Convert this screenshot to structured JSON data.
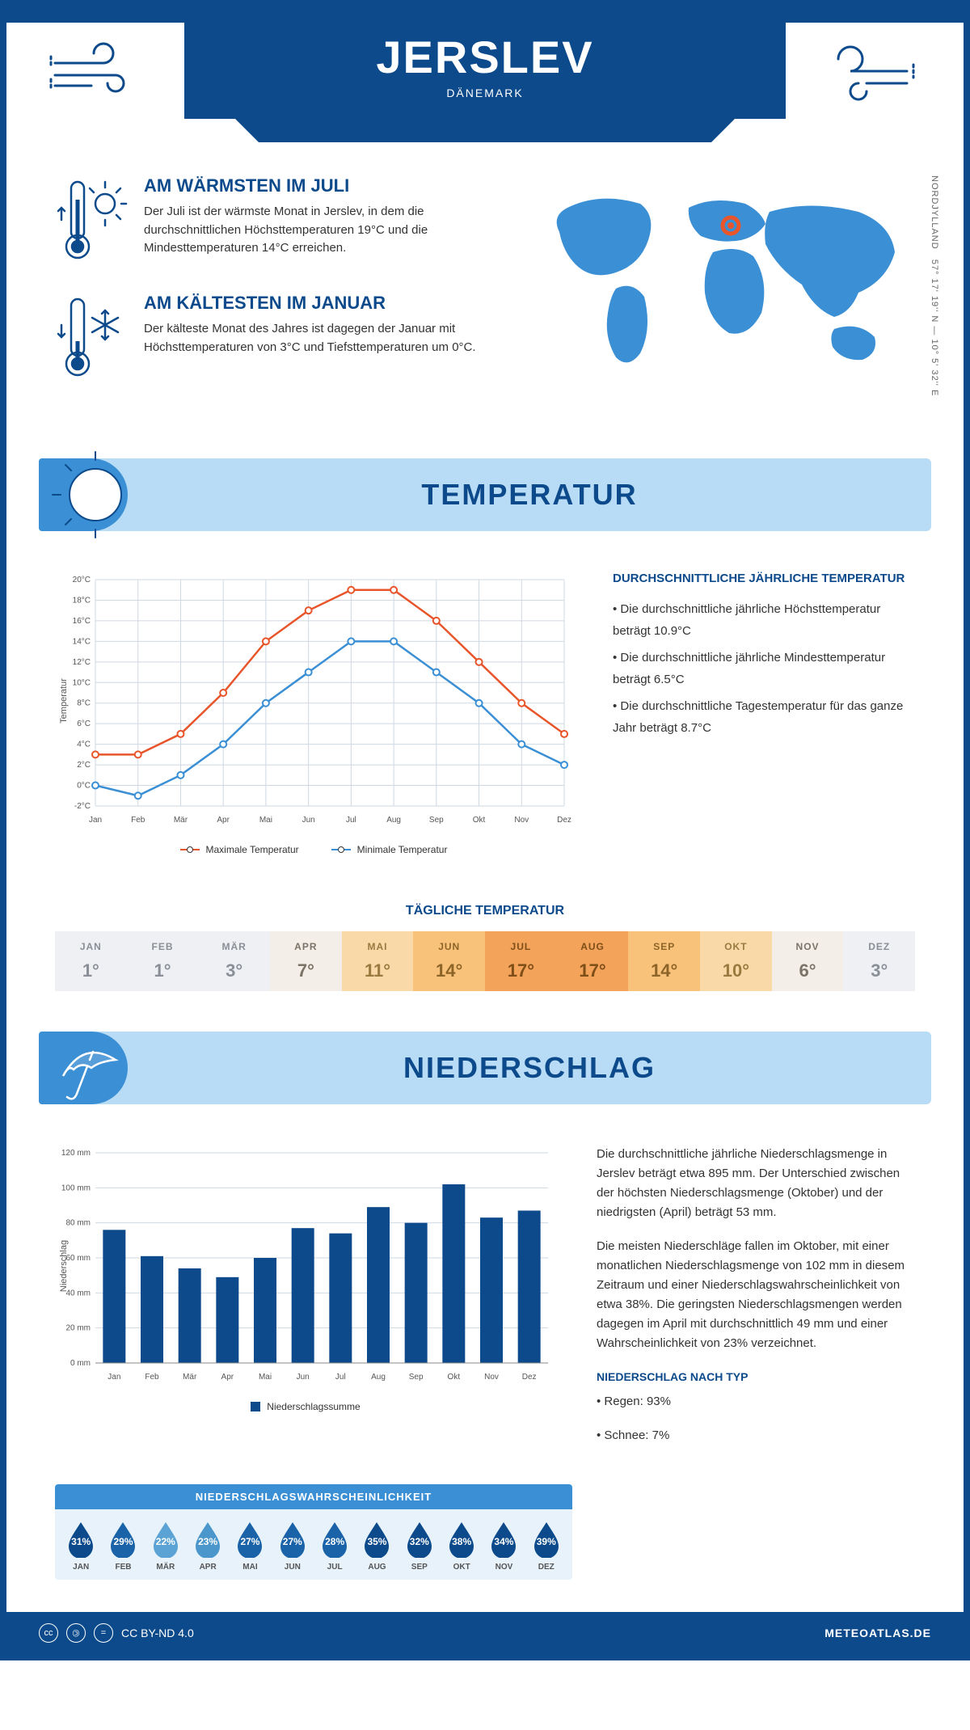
{
  "header": {
    "title": "JERSLEV",
    "subtitle": "DÄNEMARK"
  },
  "coords": "57° 17' 19'' N — 10° 5' 32'' E",
  "region": "NORDJYLLAND",
  "colors": {
    "primary": "#0c4a8b",
    "light_blue": "#b8dcf5",
    "mid_blue": "#3b8fd4",
    "max_line": "#e8552b",
    "min_line": "#3b8fd4",
    "bar": "#0c4a8b",
    "grid": "#cfd8e3"
  },
  "warmest": {
    "title": "AM WÄRMSTEN IM JULI",
    "text": "Der Juli ist der wärmste Monat in Jerslev, in dem die durchschnittlichen Höchsttemperaturen 19°C und die Mindesttemperaturen 14°C erreichen."
  },
  "coldest": {
    "title": "AM KÄLTESTEN IM JANUAR",
    "text": "Der kälteste Monat des Jahres ist dagegen der Januar mit Höchsttemperaturen von 3°C und Tiefsttemperaturen um 0°C."
  },
  "months": [
    "Jan",
    "Feb",
    "Mär",
    "Apr",
    "Mai",
    "Jun",
    "Jul",
    "Aug",
    "Sep",
    "Okt",
    "Nov",
    "Dez"
  ],
  "months_upper": [
    "JAN",
    "FEB",
    "MÄR",
    "APR",
    "MAI",
    "JUN",
    "JUL",
    "AUG",
    "SEP",
    "OKT",
    "NOV",
    "DEZ"
  ],
  "temp_section": {
    "header": "TEMPERATUR",
    "info_title": "DURCHSCHNITTLICHE JÄHRLICHE TEMPERATUR",
    "bullets": [
      "• Die durchschnittliche jährliche Höchsttemperatur beträgt 10.9°C",
      "• Die durchschnittliche jährliche Mindesttemperatur beträgt 6.5°C",
      "• Die durchschnittliche Tagestemperatur für das ganze Jahr beträgt 8.7°C"
    ],
    "legend_max": "Maximale Temperatur",
    "legend_min": "Minimale Temperatur",
    "ylabel": "Temperatur",
    "ylim": [
      -2,
      20
    ],
    "ytick_step": 2,
    "max_temps": [
      3,
      3,
      5,
      9,
      14,
      17,
      19,
      19,
      16,
      12,
      8,
      5
    ],
    "min_temps": [
      0,
      -1,
      1,
      4,
      8,
      11,
      14,
      14,
      11,
      8,
      4,
      2
    ]
  },
  "daily": {
    "title": "TÄGLICHE TEMPERATUR",
    "values": [
      1,
      1,
      3,
      7,
      11,
      14,
      17,
      17,
      14,
      10,
      6,
      3
    ],
    "cell_colors": [
      "#eef0f3",
      "#eef0f3",
      "#eef0f3",
      "#f3eee8",
      "#fad9a8",
      "#f9c27a",
      "#f3a35a",
      "#f3a35a",
      "#f9c27a",
      "#fad9a8",
      "#f3eee8",
      "#eef0f3"
    ],
    "text_colors": [
      "#8a8f97",
      "#8a8f97",
      "#8a8f97",
      "#7a7368",
      "#9a7a3f",
      "#8c6428",
      "#7d4e17",
      "#7d4e17",
      "#8c6428",
      "#9a7a3f",
      "#7a7368",
      "#8a8f97"
    ]
  },
  "precip_section": {
    "header": "NIEDERSCHLAG",
    "ylabel": "Niederschlag",
    "ylim": [
      0,
      120
    ],
    "ytick_step": 20,
    "values": [
      76,
      61,
      54,
      49,
      60,
      77,
      74,
      89,
      80,
      102,
      83,
      87
    ],
    "legend": "Niederschlagssumme",
    "para1": "Die durchschnittliche jährliche Niederschlagsmenge in Jerslev beträgt etwa 895 mm. Der Unterschied zwischen der höchsten Niederschlagsmenge (Oktober) und der niedrigsten (April) beträgt 53 mm.",
    "para2": "Die meisten Niederschläge fallen im Oktober, mit einer monatlichen Niederschlagsmenge von 102 mm in diesem Zeitraum und einer Niederschlagswahrscheinlichkeit von etwa 38%. Die geringsten Niederschlagsmengen werden dagegen im April mit durchschnittlich 49 mm und einer Wahrscheinlichkeit von 23% verzeichnet.",
    "type_title": "NIEDERSCHLAG NACH TYP",
    "type_lines": [
      "• Regen: 93%",
      "• Schnee: 7%"
    ]
  },
  "probability": {
    "title": "NIEDERSCHLAGSWAHRSCHEINLICHKEIT",
    "values": [
      31,
      29,
      22,
      23,
      27,
      27,
      28,
      35,
      32,
      38,
      34,
      39
    ],
    "colors": [
      "#0c4a8b",
      "#1a63a8",
      "#5aa3d4",
      "#4b97cc",
      "#1a63a8",
      "#1a63a8",
      "#1a63a8",
      "#0c4a8b",
      "#0c4a8b",
      "#0c4a8b",
      "#0c4a8b",
      "#0c4a8b"
    ]
  },
  "footer": {
    "license": "CC BY-ND 4.0",
    "site": "METEOATLAS.DE"
  }
}
